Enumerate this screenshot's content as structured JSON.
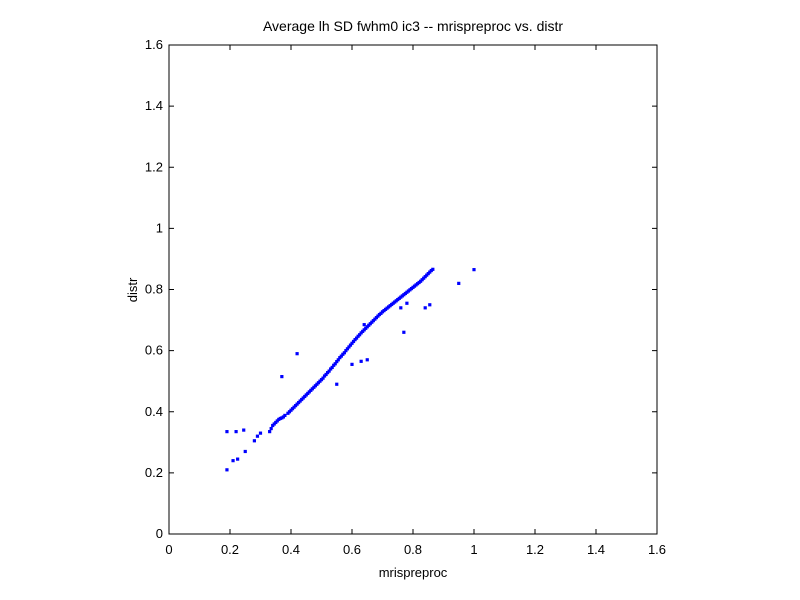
{
  "chart_data": {
    "type": "scatter",
    "title": "Average lh SD fwhm0 ic3 -- mrispreproc vs. distr",
    "xlabel": "mrispreproc",
    "ylabel": "distr",
    "xlim": [
      0,
      1.6
    ],
    "ylim": [
      0,
      1.6
    ],
    "xticks": [
      "0",
      "0.2",
      "0.4",
      "0.6",
      "0.8",
      "1",
      "1.2",
      "1.4",
      "1.6"
    ],
    "yticks": [
      "0",
      "0.2",
      "0.4",
      "0.6",
      "0.8",
      "1",
      "1.2",
      "1.4",
      "1.6"
    ],
    "grid": false,
    "legend": "none",
    "marker_color": "#0000ff",
    "marker": "dot",
    "series": [
      {
        "points": [
          [
            0.19,
            0.21
          ],
          [
            0.19,
            0.335
          ],
          [
            0.22,
            0.335
          ],
          [
            0.245,
            0.34
          ],
          [
            0.21,
            0.24
          ],
          [
            0.225,
            0.245
          ],
          [
            0.25,
            0.27
          ],
          [
            0.28,
            0.305
          ],
          [
            0.29,
            0.32
          ],
          [
            0.3,
            0.33
          ],
          [
            0.33,
            0.335
          ],
          [
            0.335,
            0.345
          ],
          [
            0.34,
            0.355
          ],
          [
            0.345,
            0.36
          ],
          [
            0.35,
            0.365
          ],
          [
            0.355,
            0.37
          ],
          [
            0.36,
            0.375
          ],
          [
            0.365,
            0.378
          ],
          [
            0.37,
            0.38
          ],
          [
            0.375,
            0.383
          ],
          [
            0.38,
            0.388
          ],
          [
            0.39,
            0.395
          ],
          [
            0.395,
            0.4
          ],
          [
            0.4,
            0.405
          ],
          [
            0.405,
            0.41
          ],
          [
            0.41,
            0.415
          ],
          [
            0.415,
            0.42
          ],
          [
            0.42,
            0.425
          ],
          [
            0.425,
            0.43
          ],
          [
            0.43,
            0.435
          ],
          [
            0.435,
            0.44
          ],
          [
            0.44,
            0.445
          ],
          [
            0.445,
            0.45
          ],
          [
            0.45,
            0.455
          ],
          [
            0.455,
            0.46
          ],
          [
            0.46,
            0.465
          ],
          [
            0.465,
            0.47
          ],
          [
            0.47,
            0.475
          ],
          [
            0.475,
            0.48
          ],
          [
            0.48,
            0.485
          ],
          [
            0.485,
            0.49
          ],
          [
            0.49,
            0.495
          ],
          [
            0.495,
            0.5
          ],
          [
            0.5,
            0.505
          ],
          [
            0.505,
            0.51
          ],
          [
            0.51,
            0.517
          ],
          [
            0.515,
            0.522
          ],
          [
            0.52,
            0.528
          ],
          [
            0.525,
            0.533
          ],
          [
            0.53,
            0.54
          ],
          [
            0.535,
            0.545
          ],
          [
            0.54,
            0.552
          ],
          [
            0.545,
            0.557
          ],
          [
            0.55,
            0.564
          ],
          [
            0.555,
            0.57
          ],
          [
            0.56,
            0.577
          ],
          [
            0.565,
            0.582
          ],
          [
            0.57,
            0.588
          ],
          [
            0.575,
            0.593
          ],
          [
            0.58,
            0.6
          ],
          [
            0.585,
            0.606
          ],
          [
            0.59,
            0.612
          ],
          [
            0.595,
            0.618
          ],
          [
            0.6,
            0.624
          ],
          [
            0.605,
            0.63
          ],
          [
            0.61,
            0.636
          ],
          [
            0.615,
            0.641
          ],
          [
            0.62,
            0.647
          ],
          [
            0.625,
            0.652
          ],
          [
            0.63,
            0.658
          ],
          [
            0.635,
            0.663
          ],
          [
            0.64,
            0.668
          ],
          [
            0.645,
            0.673
          ],
          [
            0.65,
            0.678
          ],
          [
            0.655,
            0.683
          ],
          [
            0.66,
            0.688
          ],
          [
            0.665,
            0.693
          ],
          [
            0.67,
            0.698
          ],
          [
            0.675,
            0.703
          ],
          [
            0.68,
            0.708
          ],
          [
            0.685,
            0.713
          ],
          [
            0.69,
            0.718
          ],
          [
            0.695,
            0.722
          ],
          [
            0.7,
            0.727
          ],
          [
            0.705,
            0.731
          ],
          [
            0.71,
            0.735
          ],
          [
            0.715,
            0.739
          ],
          [
            0.72,
            0.743
          ],
          [
            0.725,
            0.747
          ],
          [
            0.73,
            0.751
          ],
          [
            0.735,
            0.755
          ],
          [
            0.74,
            0.759
          ],
          [
            0.745,
            0.763
          ],
          [
            0.75,
            0.767
          ],
          [
            0.755,
            0.771
          ],
          [
            0.76,
            0.775
          ],
          [
            0.765,
            0.779
          ],
          [
            0.77,
            0.783
          ],
          [
            0.775,
            0.787
          ],
          [
            0.78,
            0.791
          ],
          [
            0.785,
            0.795
          ],
          [
            0.79,
            0.799
          ],
          [
            0.795,
            0.803
          ],
          [
            0.8,
            0.807
          ],
          [
            0.805,
            0.811
          ],
          [
            0.81,
            0.815
          ],
          [
            0.815,
            0.819
          ],
          [
            0.82,
            0.823
          ],
          [
            0.825,
            0.827
          ],
          [
            0.83,
            0.832
          ],
          [
            0.835,
            0.837
          ],
          [
            0.84,
            0.842
          ],
          [
            0.845,
            0.847
          ],
          [
            0.85,
            0.852
          ],
          [
            0.855,
            0.857
          ],
          [
            0.86,
            0.862
          ],
          [
            0.865,
            0.866
          ],
          [
            0.42,
            0.59
          ],
          [
            0.37,
            0.515
          ],
          [
            0.64,
            0.685
          ],
          [
            0.55,
            0.49
          ],
          [
            0.6,
            0.555
          ],
          [
            0.65,
            0.57
          ],
          [
            0.63,
            0.565
          ],
          [
            0.77,
            0.66
          ],
          [
            0.84,
            0.74
          ],
          [
            0.855,
            0.75
          ],
          [
            0.95,
            0.82
          ],
          [
            1.0,
            0.865
          ],
          [
            0.78,
            0.755
          ],
          [
            0.76,
            0.74
          ]
        ]
      }
    ]
  }
}
